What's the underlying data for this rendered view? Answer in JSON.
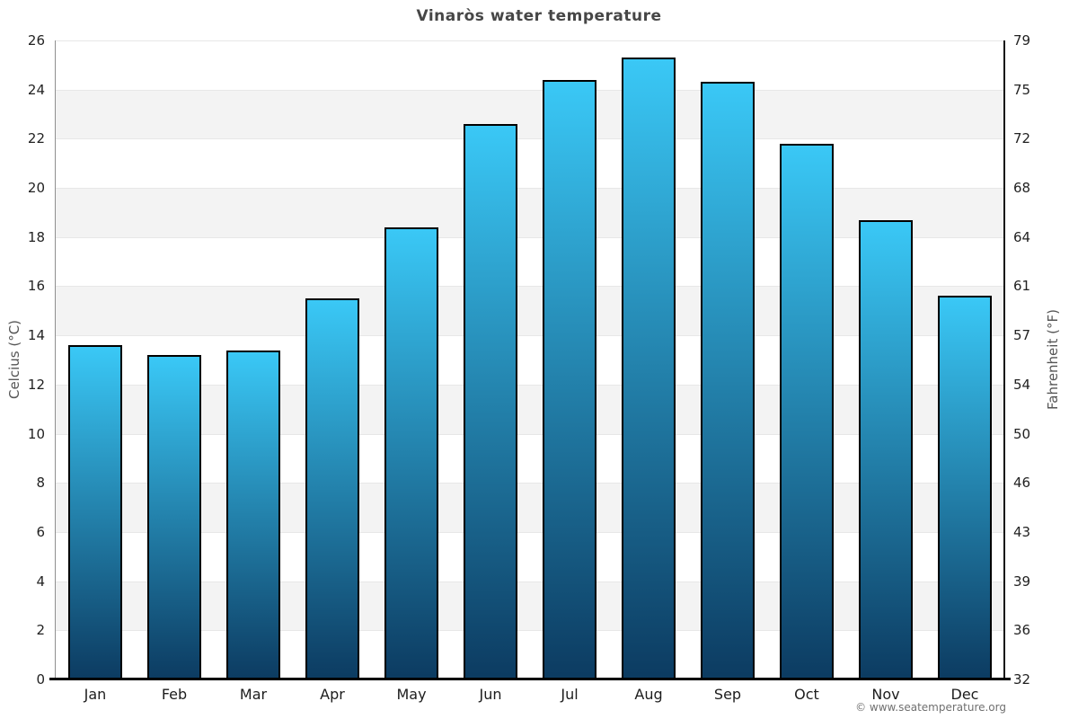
{
  "title": "Vinaròs water temperature",
  "chart_data": {
    "type": "bar",
    "title": "Vinaròs water temperature",
    "categories": [
      "Jan",
      "Feb",
      "Mar",
      "Apr",
      "May",
      "Jun",
      "Jul",
      "Aug",
      "Sep",
      "Oct",
      "Nov",
      "Dec"
    ],
    "values": [
      13.6,
      13.2,
      13.4,
      15.5,
      18.4,
      22.6,
      24.4,
      25.3,
      24.3,
      21.8,
      18.7,
      15.6
    ],
    "unit": "°C",
    "ylabel_left": "Celcius (°C)",
    "ylabel_right": "Fahrenheit (°F)",
    "xlabel": "",
    "ylim": [
      0,
      26
    ],
    "yticks_left": [
      26,
      24,
      22,
      20,
      18,
      16,
      14,
      12,
      10,
      8,
      6,
      4,
      2,
      0
    ],
    "yticks_right": [
      79,
      75,
      72,
      68,
      64,
      61,
      57,
      54,
      50,
      46,
      43,
      39,
      36,
      32
    ],
    "legend": "none",
    "grid": "alternating horizontal bands every 2°C",
    "colors": {
      "bar_gradient_top": "#3ac8f6",
      "bar_gradient_bottom": "#0c3b61",
      "bar_border": "#000000",
      "band_gray": "#f3f3f3",
      "gridline": "#e7e7e7",
      "bottom_axis": "#000000",
      "title_text": "#464646",
      "tick_text": "#222222",
      "axis_title_text": "#555555",
      "copyright_text": "#707070"
    }
  },
  "footer": {
    "copyright": "© www.seatemperature.org"
  }
}
